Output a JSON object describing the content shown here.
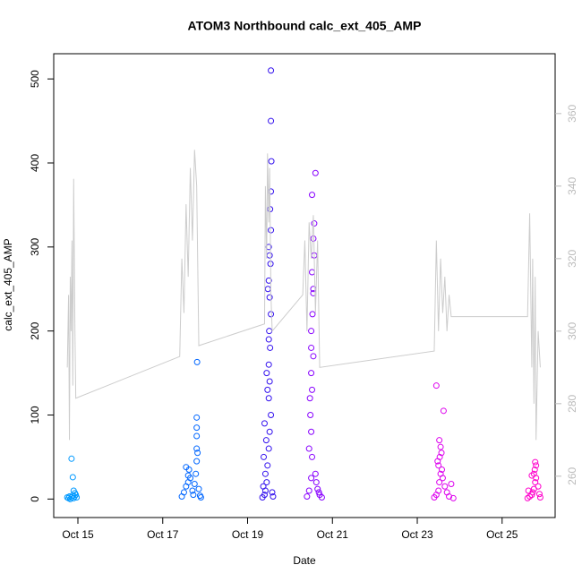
{
  "chart_data": {
    "type": "scatter",
    "title": "ATOM3 Northbound calc_ext_405_AMP",
    "x_label": "Date",
    "y_label": "calc_ext_405_AMP",
    "xlim": [
      14.43,
      26.25
    ],
    "xticks": [
      {
        "value": 15,
        "label": "Oct 15"
      },
      {
        "value": 17,
        "label": "Oct 17"
      },
      {
        "value": 19,
        "label": "Oct 19"
      },
      {
        "value": 21,
        "label": "Oct 21"
      },
      {
        "value": 23,
        "label": "Oct 23"
      },
      {
        "value": 25,
        "label": "Oct 25"
      }
    ],
    "ylim": [
      -22,
      530
    ],
    "yticks": [
      0,
      100,
      200,
      300,
      400,
      500
    ],
    "y2lim": [
      248.6,
      376.5
    ],
    "y2ticks": [
      260,
      280,
      300,
      320,
      340,
      360
    ],
    "y2_color": "#bbbbbb",
    "series": [
      {
        "color": "#0099ff",
        "x": [
          14.75,
          14.78,
          14.8,
          14.82,
          14.85,
          14.87,
          14.9,
          14.92,
          14.95,
          14.97,
          14.85,
          14.88,
          14.9,
          14.93
        ],
        "values": [
          2,
          1,
          3,
          0,
          2,
          4,
          1,
          3,
          5,
          2,
          48,
          26,
          10,
          7
        ]
      },
      {
        "color": "#0066ff",
        "x": [
          17.45,
          17.5,
          17.55,
          17.6,
          17.62,
          17.65,
          17.7,
          17.72,
          17.75,
          17.78,
          17.8,
          17.8,
          17.8,
          17.8,
          17.8,
          17.81,
          17.82,
          17.85,
          17.88,
          17.9,
          17.55,
          17.6
        ],
        "values": [
          3,
          8,
          15,
          20,
          35,
          25,
          10,
          5,
          18,
          30,
          45,
          60,
          75,
          85,
          97,
          163,
          55,
          12,
          4,
          2,
          38,
          28
        ]
      },
      {
        "color": "#3311ee",
        "x": [
          19.35,
          19.4,
          19.42,
          19.45,
          19.47,
          19.5,
          19.52,
          19.55,
          19.5,
          19.52,
          19.5,
          19.53,
          19.51,
          19.55,
          19.52,
          19.5,
          19.54,
          19.52,
          19.5,
          19.55,
          19.53,
          19.55,
          19.56,
          19.55,
          19.55,
          19.48,
          19.45,
          19.4,
          19.38,
          19.42,
          19.58,
          19.6,
          19.37,
          19.44,
          19.47,
          19.5
        ],
        "values": [
          2,
          5,
          10,
          20,
          40,
          60,
          80,
          100,
          120,
          140,
          160,
          180,
          200,
          220,
          240,
          260,
          280,
          290,
          300,
          320,
          345,
          366,
          402,
          450,
          510,
          250,
          150,
          90,
          50,
          30,
          8,
          3,
          15,
          70,
          130,
          190
        ]
      },
      {
        "color": "#8800ff",
        "x": [
          20.4,
          20.45,
          20.5,
          20.52,
          20.5,
          20.48,
          20.52,
          20.5,
          20.55,
          20.5,
          20.53,
          20.55,
          20.52,
          20.57,
          20.55,
          20.57,
          20.52,
          20.6,
          20.55,
          20.5,
          20.47,
          20.45,
          20.6,
          20.65,
          20.7,
          20.75,
          20.68,
          20.62
        ],
        "values": [
          3,
          10,
          25,
          50,
          80,
          100,
          130,
          150,
          170,
          200,
          220,
          250,
          270,
          290,
          310,
          328,
          362,
          388,
          245,
          180,
          120,
          60,
          30,
          12,
          5,
          2,
          8,
          20
        ]
      },
      {
        "color": "#dd00ee",
        "x": [
          23.4,
          23.45,
          23.5,
          23.52,
          23.55,
          23.5,
          23.53,
          23.57,
          23.55,
          23.52,
          23.62,
          23.45,
          23.6,
          23.65,
          23.7,
          23.75,
          23.85,
          23.48,
          23.58,
          23.8
        ],
        "values": [
          2,
          5,
          10,
          20,
          30,
          40,
          50,
          55,
          62,
          70,
          105,
          135,
          25,
          15,
          8,
          3,
          1,
          45,
          35,
          18
        ]
      },
      {
        "color": "#ff00cc",
        "x": [
          25.6,
          25.65,
          25.7,
          25.72,
          25.75,
          25.78,
          25.8,
          25.75,
          25.77,
          25.8,
          25.78,
          25.85,
          25.88,
          25.9,
          25.62,
          25.7
        ],
        "values": [
          1,
          3,
          5,
          8,
          12,
          20,
          25,
          30,
          35,
          40,
          44,
          15,
          6,
          2,
          10,
          28
        ]
      },
      {
        "type": "line",
        "axis": "y2",
        "color": "#cccccc",
        "x": [
          14.75,
          14.78,
          14.8,
          14.82,
          14.84,
          14.86,
          14.88,
          14.9,
          14.93,
          14.95,
          17.4,
          17.45,
          17.5,
          17.55,
          17.6,
          17.65,
          17.7,
          17.75,
          17.8,
          17.85,
          19.4,
          19.42,
          19.45,
          19.47,
          19.5,
          19.52,
          19.55,
          19.58,
          20.3,
          20.35,
          20.4,
          20.45,
          20.5,
          20.55,
          20.6,
          20.65,
          20.7,
          23.4,
          23.45,
          23.5,
          23.55,
          23.6,
          23.65,
          23.7,
          23.75,
          23.8,
          25.6,
          25.65,
          25.7,
          25.72,
          25.75,
          25.78,
          25.8,
          25.85,
          25.9
        ],
        "values": [
          290,
          310,
          270,
          315,
          300,
          325,
          285,
          342,
          300,
          281.5,
          293,
          320,
          305,
          335,
          315,
          345,
          325,
          350,
          340,
          296,
          302,
          340,
          320,
          349,
          330,
          345,
          310,
          300,
          310,
          325,
          300,
          330,
          320,
          332,
          305,
          325,
          290,
          294.5,
          325,
          300,
          320,
          305,
          315,
          300,
          310,
          304,
          304,
          332.5,
          290,
          320,
          280,
          315,
          270,
          300,
          290
        ]
      }
    ]
  }
}
